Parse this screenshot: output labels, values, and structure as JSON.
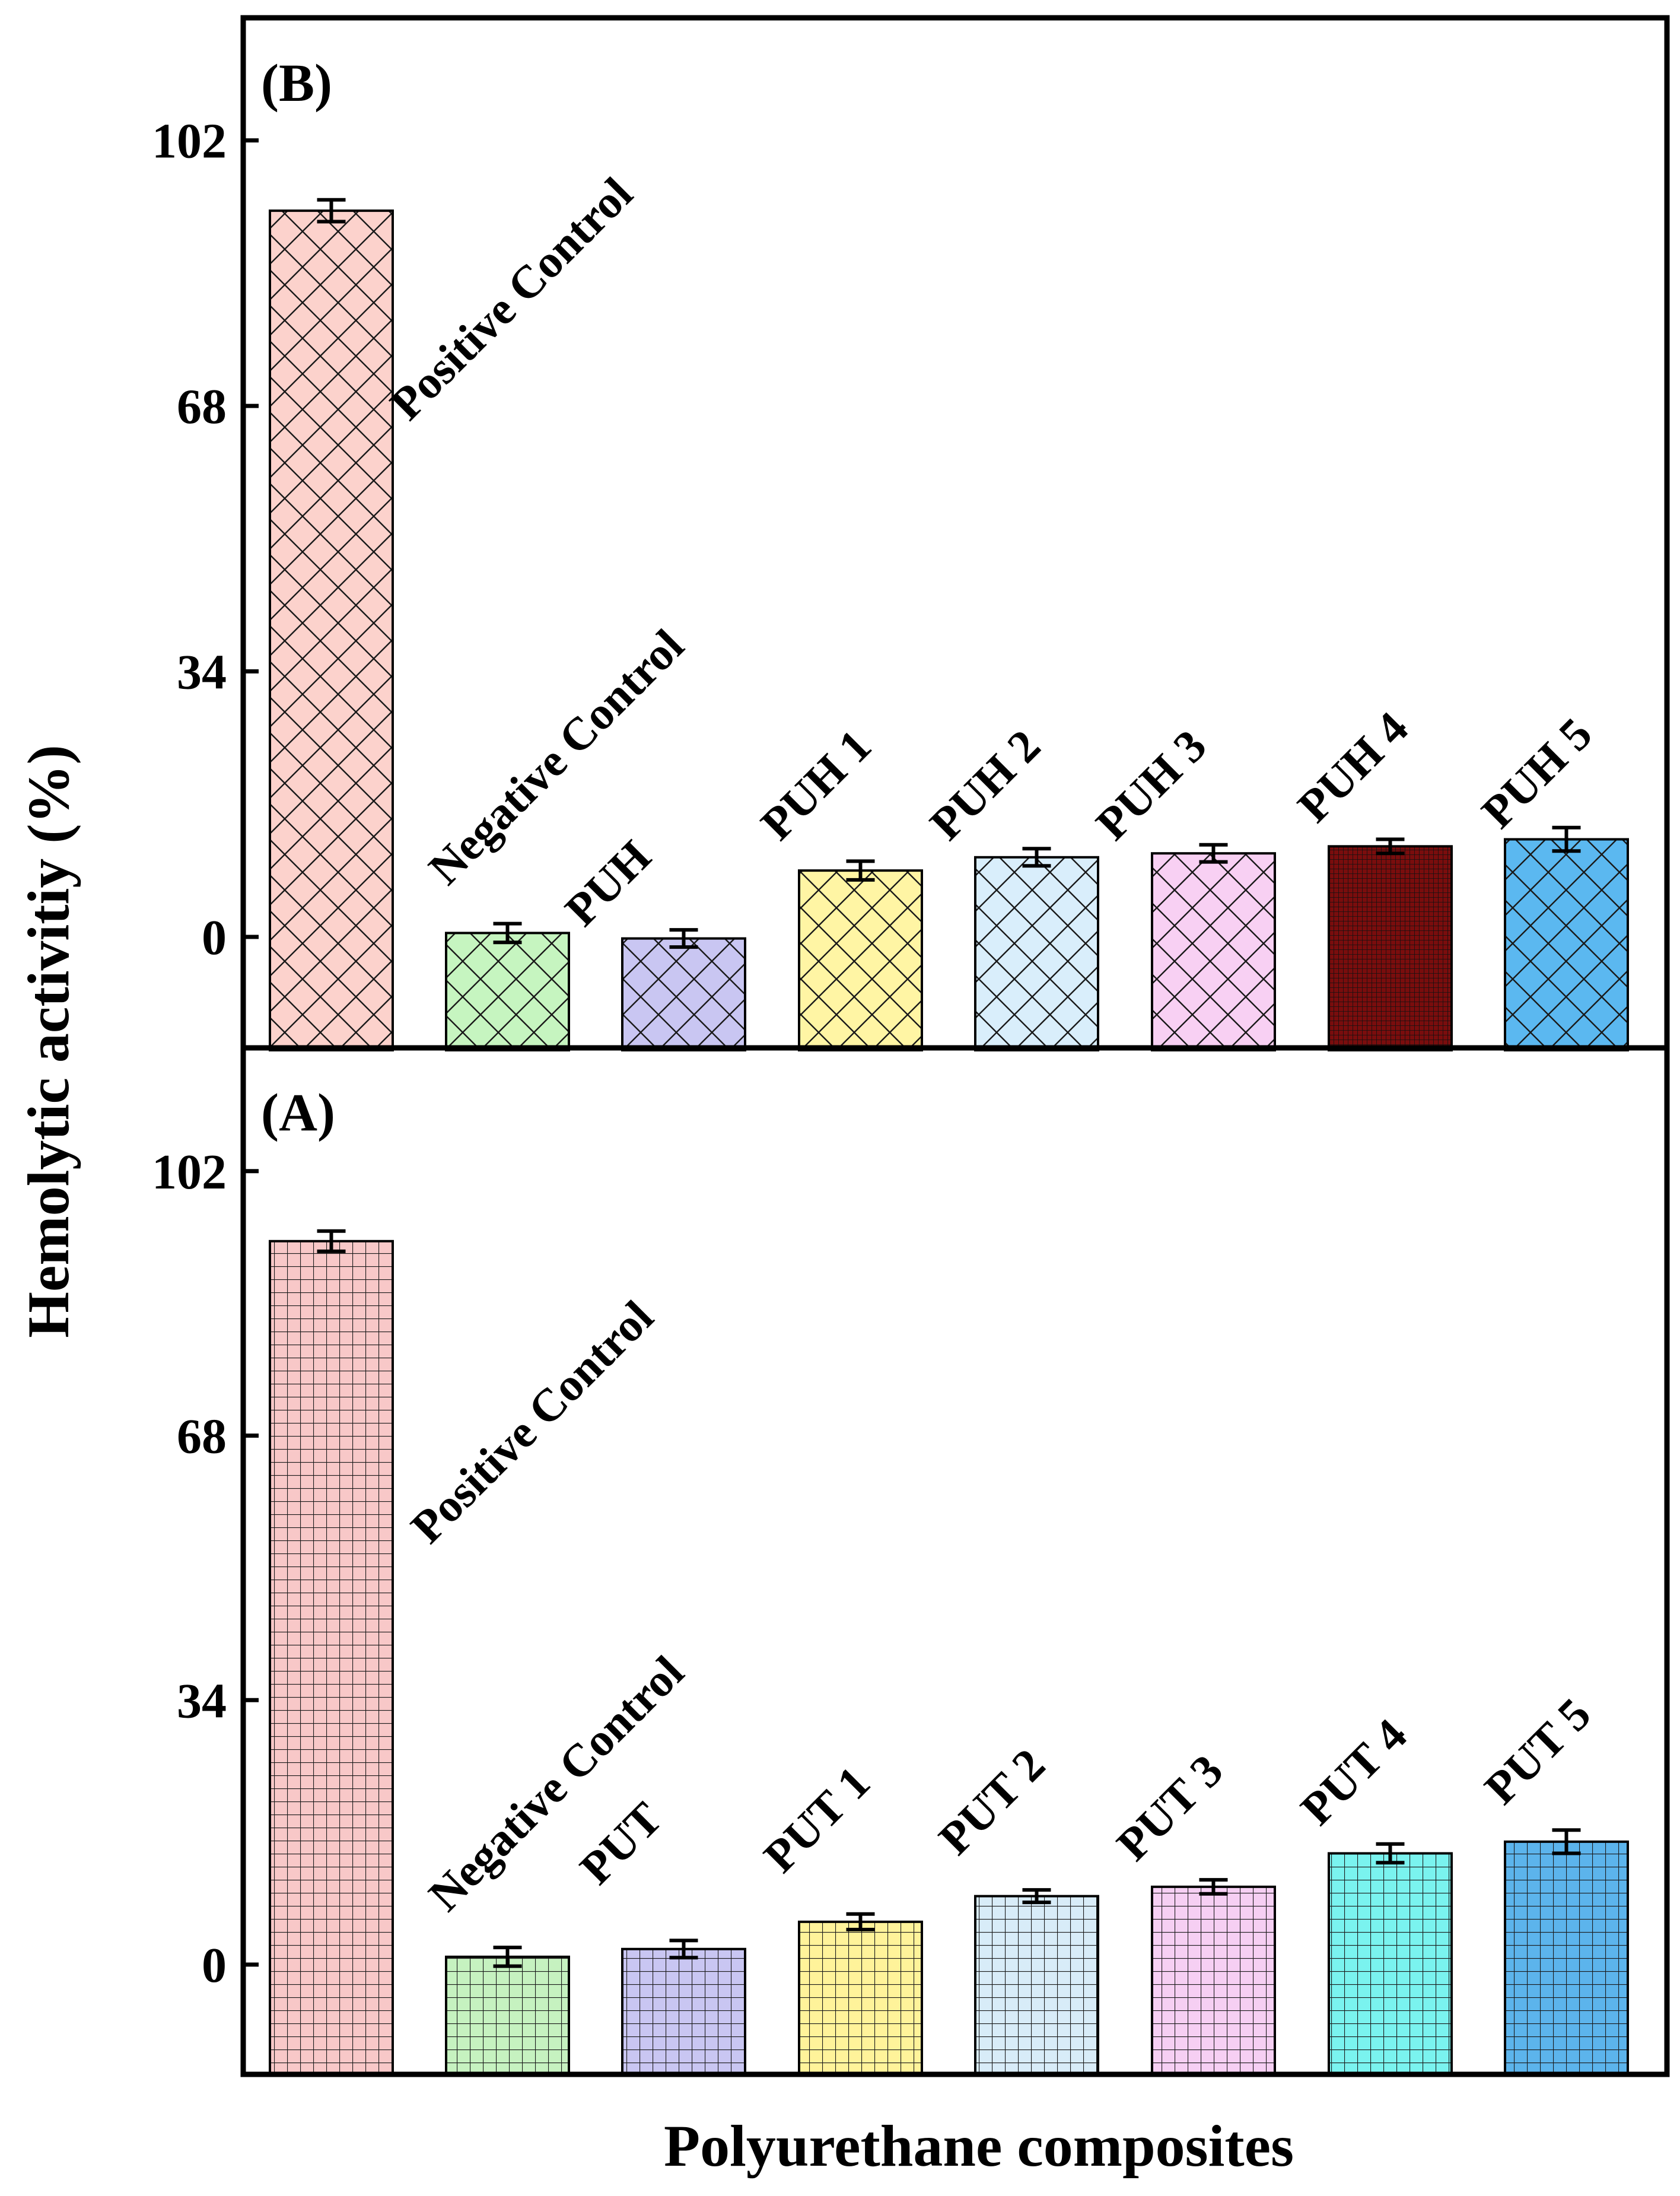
{
  "figure": {
    "xlabel": "Polyurethane composites",
    "ylabel": "Hemolytic activitiy (%)"
  },
  "chart_data": [
    {
      "type": "bar",
      "panel_label": "(B)",
      "pattern": "crosshatch",
      "categories": [
        "Positive Control",
        "Negative Control",
        "PUH",
        "PUH 1",
        "PUH 2",
        "PUH 3",
        "PUH 4",
        "PUH 5"
      ],
      "values": [
        93,
        0.5,
        -0.2,
        8.5,
        10.2,
        10.7,
        11.6,
        12.5
      ],
      "errors": [
        1.4,
        1.2,
        1.1,
        1.2,
        1.1,
        1.1,
        0.9,
        1.5
      ],
      "colors": [
        "#fcd2cc",
        "#c6f5c0",
        "#c9c6f2",
        "#fff5a4",
        "#d9eefb",
        "#f8d0f3",
        "#7a0d0d",
        "#5bb8f0"
      ],
      "yticks": [
        0,
        34,
        68,
        102
      ],
      "ylim": [
        -14,
        120
      ],
      "xlabel": "Polyurethane composites",
      "ylabel": "Hemolytic activitiy (%)"
    },
    {
      "type": "bar",
      "panel_label": "(A)",
      "pattern": "grid",
      "categories": [
        "Positive Control",
        "Negative Control",
        "PUT",
        "PUT 1",
        "PUT 2",
        "PUT 3",
        "PUT 4",
        "PUT 5"
      ],
      "values": [
        93,
        1.0,
        2.0,
        5.5,
        8.8,
        10.0,
        14.3,
        15.8
      ],
      "errors": [
        1.3,
        1.2,
        1.1,
        1.0,
        0.8,
        0.9,
        1.2,
        1.5
      ],
      "colors": [
        "#f8c8c8",
        "#c6f2c0",
        "#c9c6f2",
        "#fff39a",
        "#d8ecf8",
        "#f6cff3",
        "#7af3ef",
        "#5cb4ec"
      ],
      "yticks": [
        0,
        34,
        68,
        102
      ],
      "ylim": [
        -14,
        120
      ],
      "xlabel": "Polyurethane composites",
      "ylabel": "Hemolytic activitiy (%)"
    }
  ]
}
